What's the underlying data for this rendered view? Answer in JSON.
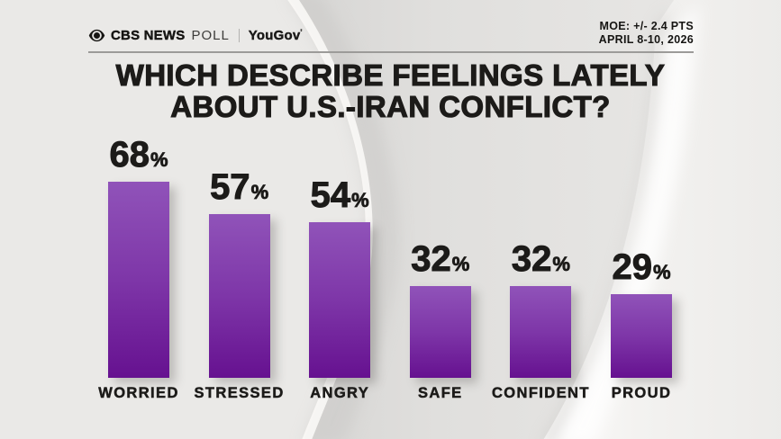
{
  "header": {
    "eye_icon": "cbs-eye",
    "brand_primary": "CBS NEWS",
    "brand_secondary": "POLL",
    "brand_partner": "YouGov",
    "brand_partner_mark": "'",
    "moe_line1": "MOE: +/- 2.4 PTS",
    "moe_line2": "APRIL 8-10, 2026"
  },
  "title": {
    "line1": "WHICH DESCRIBE FEELINGS LATELY",
    "line2": "ABOUT U.S.-IRAN CONFLICT?"
  },
  "chart_data": {
    "type": "bar",
    "title": "WHICH DESCRIBE FEELINGS LATELY ABOUT U.S.-IRAN CONFLICT?",
    "categories": [
      "WORRIED",
      "STRESSED",
      "ANGRY",
      "SAFE",
      "CONFIDENT",
      "PROUD"
    ],
    "values": [
      68,
      57,
      54,
      32,
      32,
      29
    ],
    "value_suffix": "%",
    "ylim": [
      0,
      100
    ],
    "grid": false,
    "legend": "none",
    "orientation": "vertical",
    "bar_color_top": "#9053b9",
    "bar_color_mid": "#7e36a8",
    "bar_color_bottom": "#661190",
    "value_label_color": "#1c1b19",
    "category_label_color": "#1c1b19"
  },
  "colors": {
    "background": "#eae9e7",
    "rule": "#9c9b99",
    "text_dark": "#1c1b19"
  }
}
